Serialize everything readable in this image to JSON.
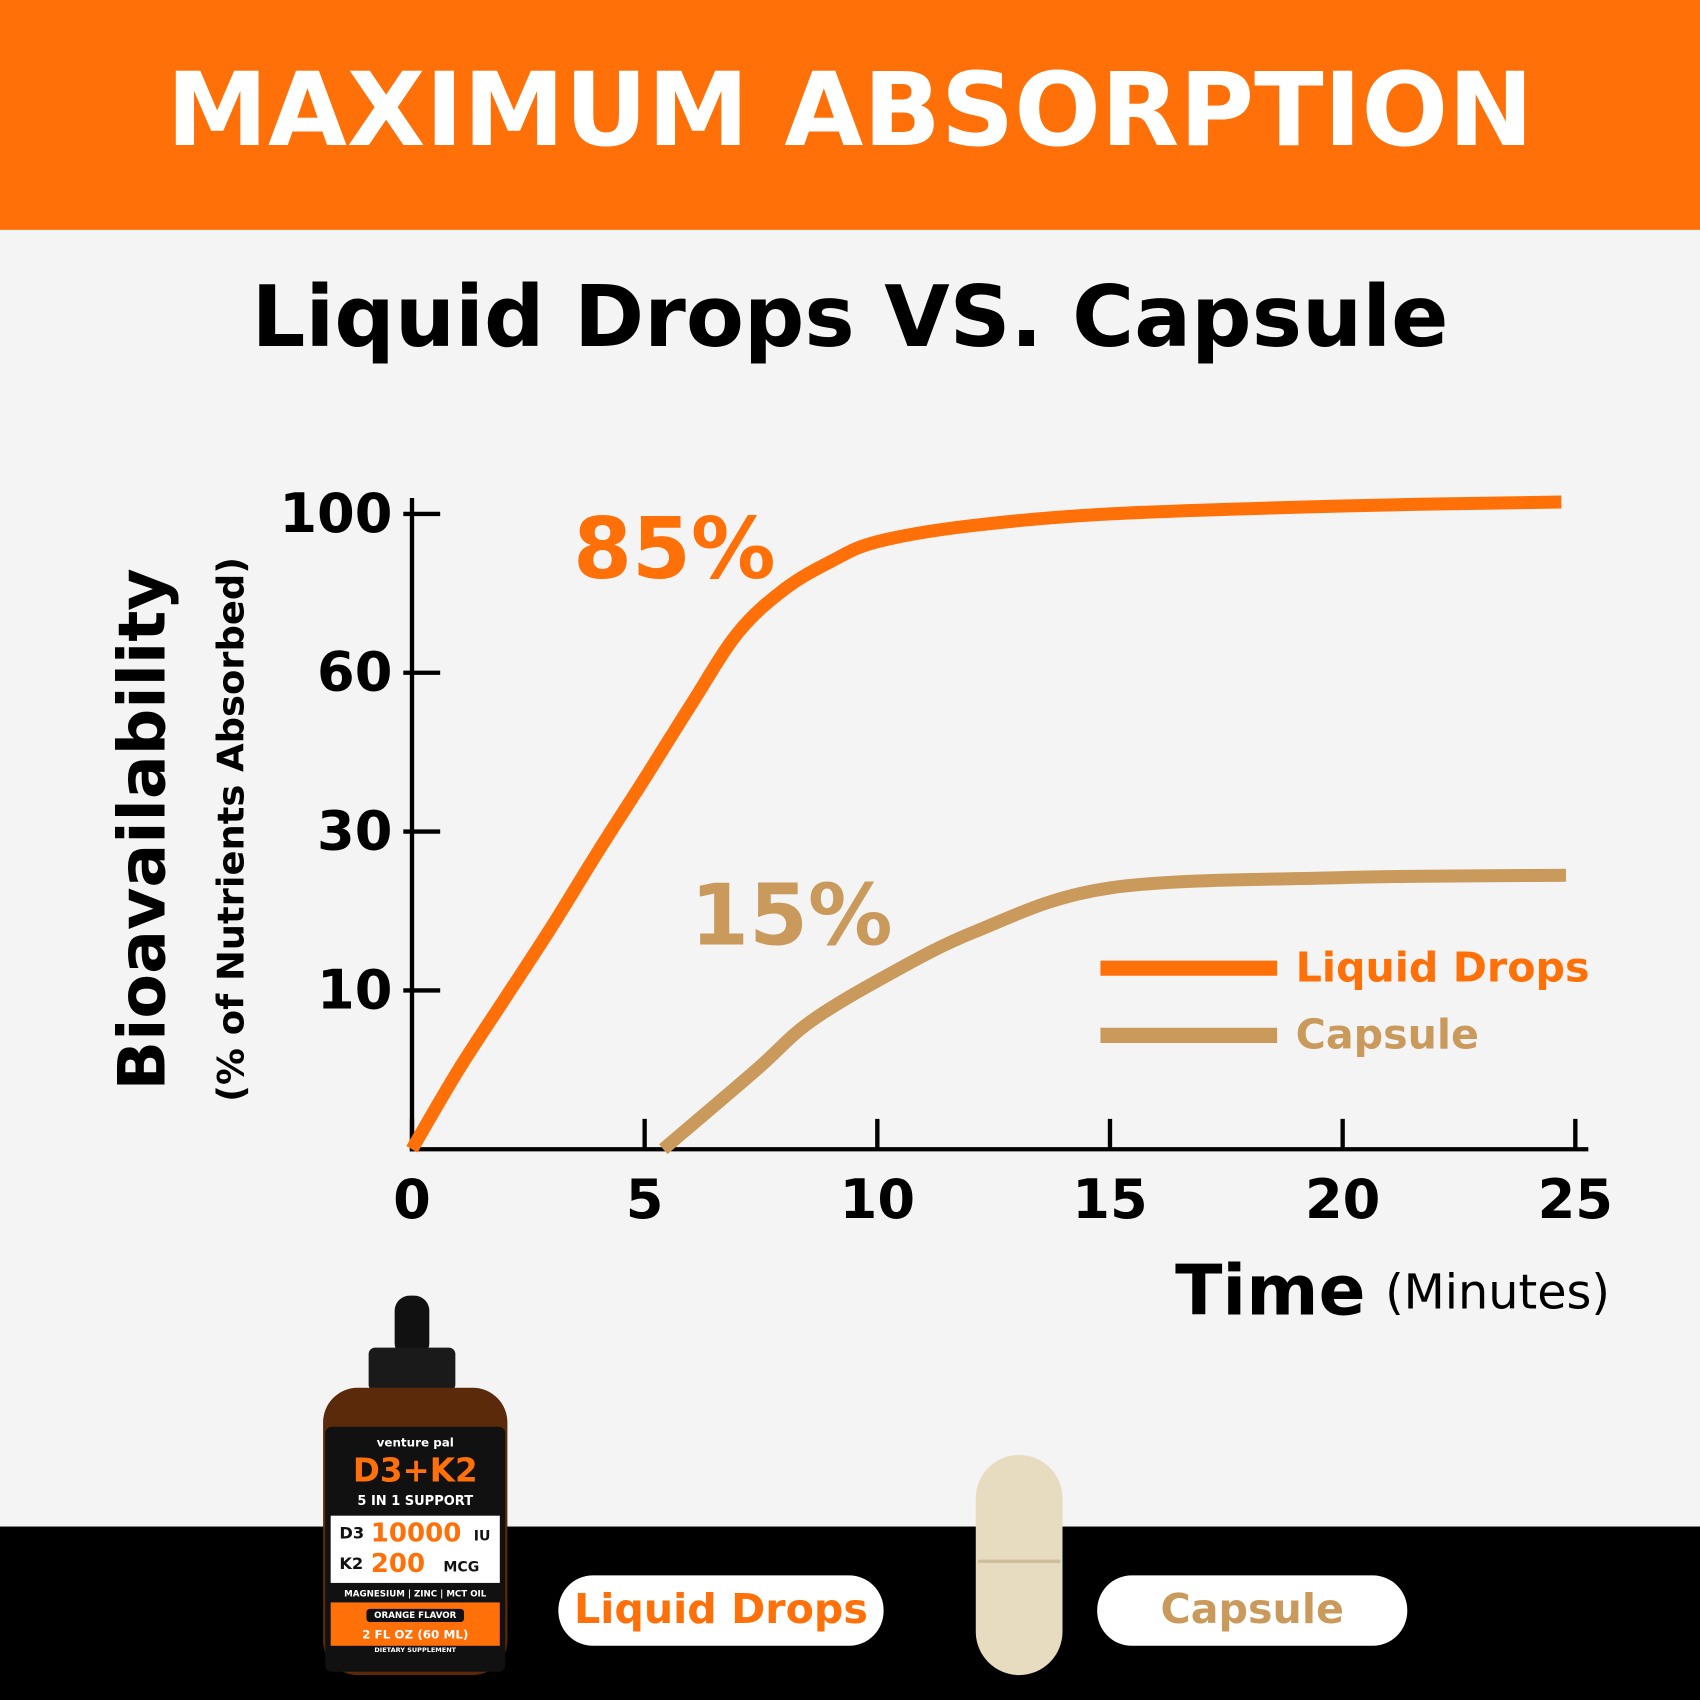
{
  "header": {
    "title": "MAXIMUM ABSORPTION"
  },
  "chart_data": {
    "type": "line",
    "title": "Liquid Drops VS. Capsule",
    "y_label": "Bioavailability",
    "y_sublabel": "(% of Nutrients Absorbed)",
    "x_label": "Time",
    "x_sublabel": "(Minutes)",
    "xlim": [
      0,
      25
    ],
    "xticks": [
      0,
      5,
      10,
      15,
      20,
      25
    ],
    "ylim": [
      0,
      104
    ],
    "yticks": [
      10,
      30,
      60,
      100
    ],
    "y_scale": "equal-tick-spacing",
    "series": [
      {
        "name": "Liquid Drops",
        "color": "#ff7008",
        "x": [
          0,
          1,
          2,
          3,
          4,
          5,
          6,
          7,
          8,
          9,
          10,
          12,
          15,
          20,
          24.7
        ],
        "values": [
          0,
          5,
          9.5,
          18,
          27.5,
          40,
          54,
          70,
          81,
          88,
          93,
          97,
          100,
          102,
          103
        ]
      },
      {
        "name": "Capsule",
        "color": "#c99a5b",
        "x": [
          5.4,
          7.4,
          8.5,
          10,
          12.1,
          15,
          20,
          24.8
        ],
        "values": [
          0,
          5,
          7.9,
          11.2,
          17.4,
          22.9,
          24.2,
          24.5
        ]
      }
    ],
    "annotations": [
      {
        "text": "85%",
        "series": 0
      },
      {
        "text": "15%",
        "series": 1
      }
    ]
  },
  "product": {
    "brand": "venture pal",
    "name": "D3+K2",
    "support": "5 IN 1 SUPPORT",
    "d3": "D3",
    "d3_amount": "10000",
    "d3_unit": "IU",
    "k2": "K2",
    "k2_amount": "200",
    "k2_unit": "MCG",
    "extras": "MAGNESIUM | ZINC | MCT OIL",
    "flavor": "ORANGE FLAVOR",
    "size": "2 FL OZ (60 ML)",
    "kind": "DIETARY SUPPLEMENT",
    "labels": [
      "Liquid Drops",
      "Capsule"
    ]
  }
}
